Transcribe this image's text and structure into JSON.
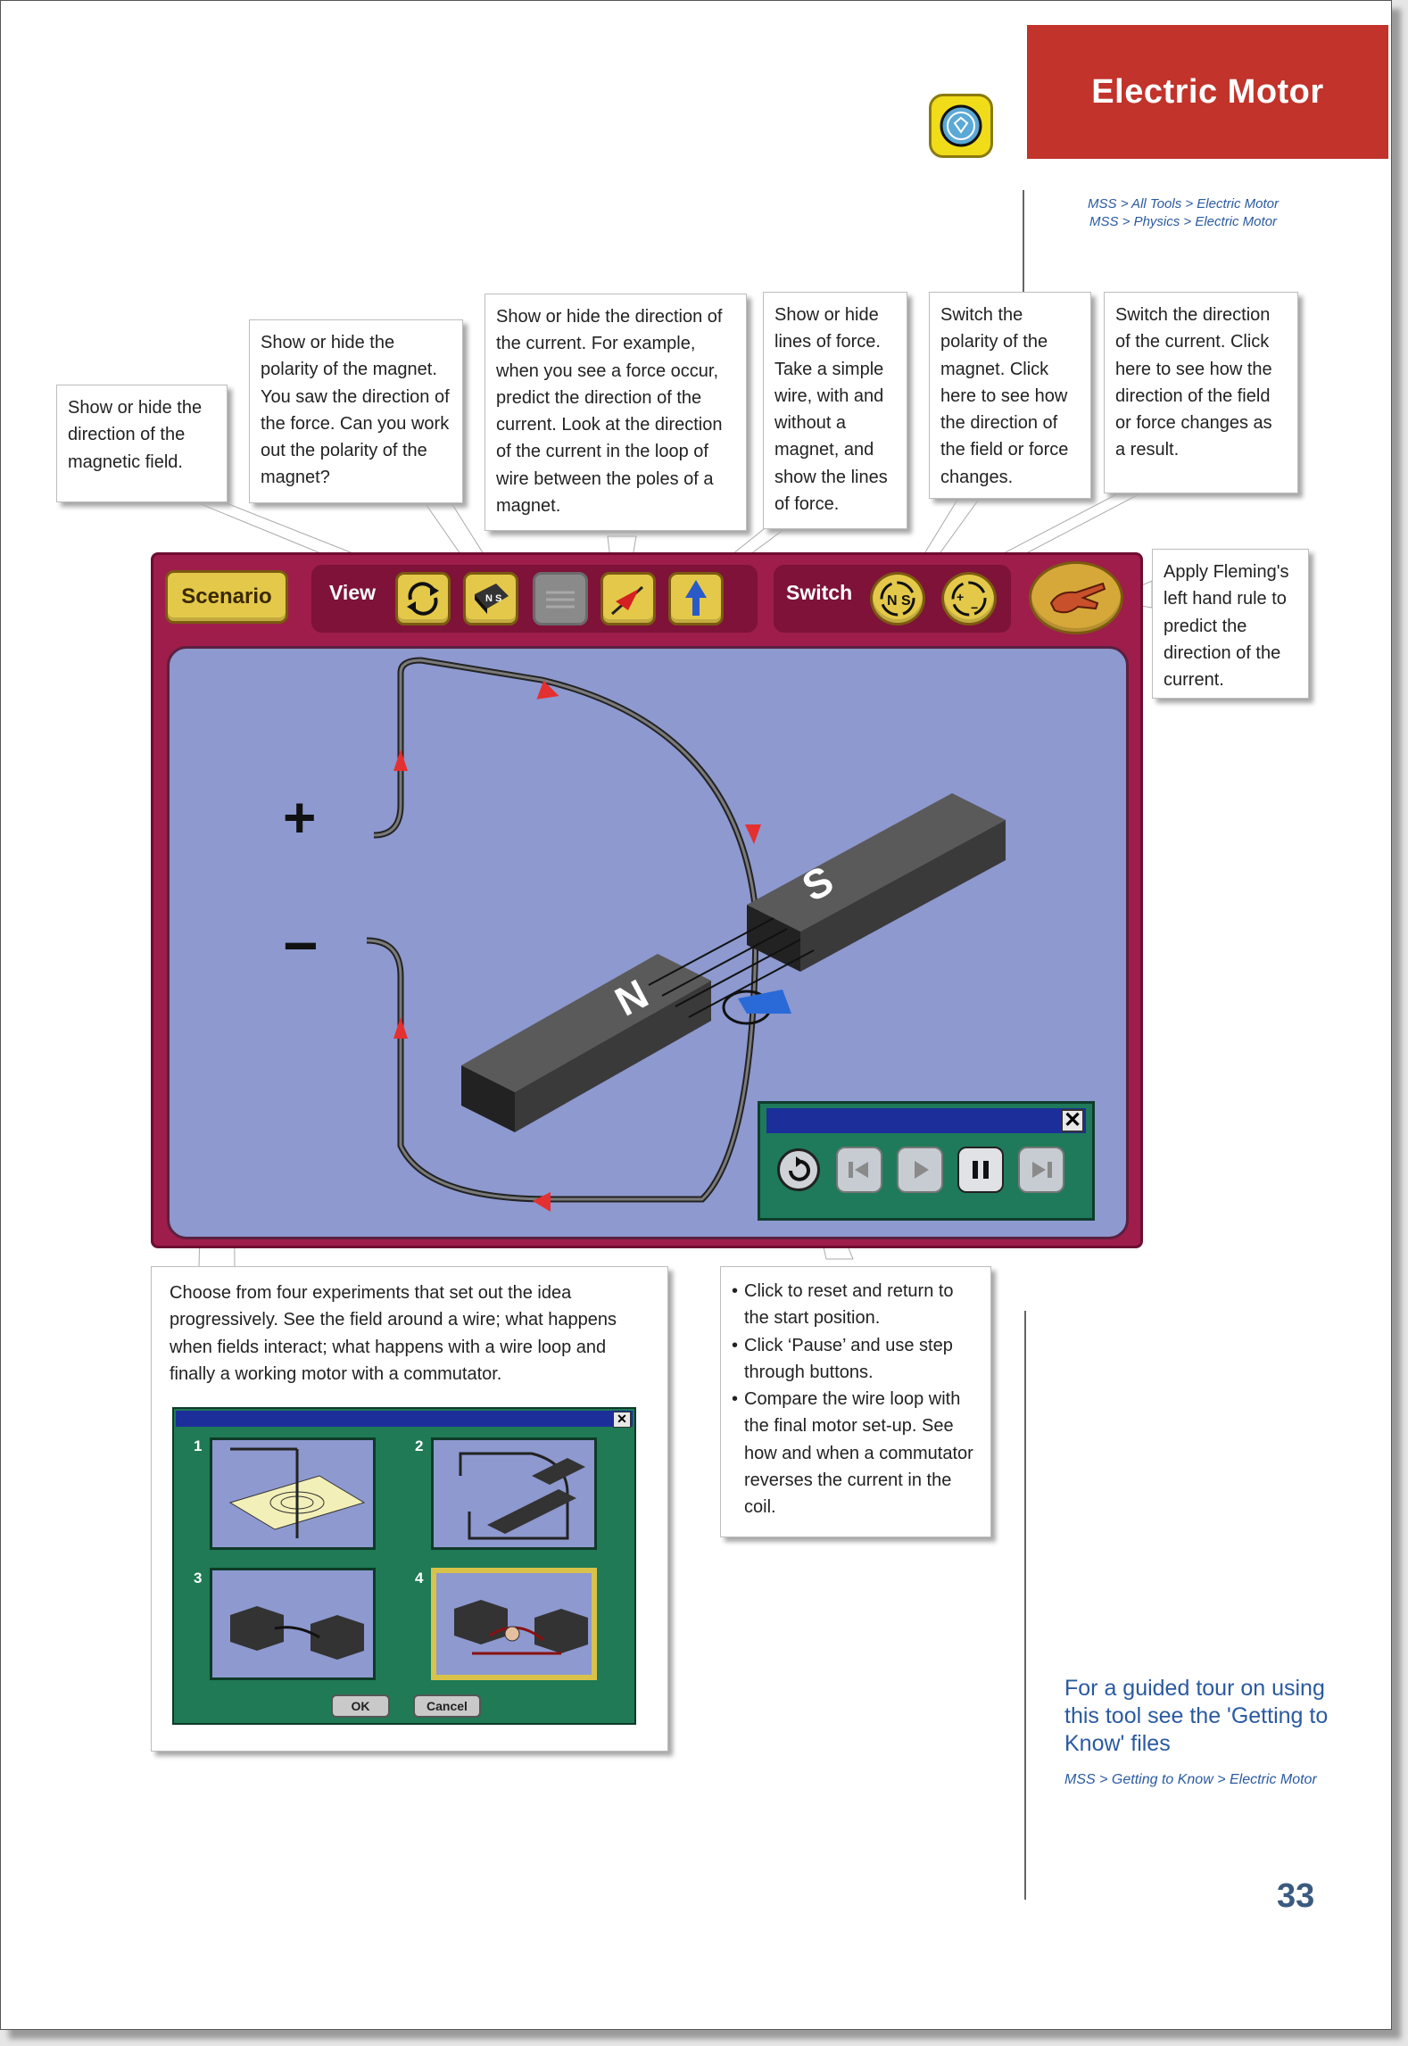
{
  "header": {
    "title": "Electric Motor",
    "breadcrumbs": [
      "MSS > All Tools > Electric Motor",
      "MSS > Physics > Electric Motor"
    ]
  },
  "callouts": {
    "magnetic_field": "Show or hide the direction of the magnetic field.",
    "polarity": "Show or hide the polarity of the magnet. You saw the direction of the force. Can you work out the polarity of the magnet?",
    "current": "Show or hide the direction of the current. For example, when you see a force occur, predict the direction of the current. Look at the direction of the current in the loop of wire between the poles of a magnet.",
    "lines_of_force": "Show or hide lines of force. Take a simple wire, with and without a magnet, and show the lines of force.",
    "switch_polarity": "Switch the polarity of the magnet. Click here to see how the direction of the field or force changes.",
    "switch_current": "Switch the direction of the current. Click here to see how the direction of the field or force changes as a result.",
    "fleming": "Apply Fleming's left hand rule to predict the direction of the current.",
    "scenario": "Choose from four experiments that set out the idea progressively. See the field around a wire; what happens when fields interact; what happens with a wire loop and finally a working motor with a commutator.",
    "controls": [
      "Click to reset and return to the start position.",
      "Click ‘Pause’ and use step through buttons.",
      "Compare the wire loop with the final motor set-up. See how and when a commutator reverses the current in the coil."
    ]
  },
  "toolbar": {
    "scenario_label": "Scenario",
    "view_label": "View",
    "switch_label": "Switch"
  },
  "stage": {
    "plus": "+",
    "minus": "−",
    "magnet_n": "N",
    "magnet_s": "S"
  },
  "controls": {
    "close": "✕"
  },
  "scenario_dialog": {
    "numbers": [
      "1",
      "2",
      "3",
      "4"
    ],
    "ok": "OK",
    "cancel": "Cancel",
    "close": "✕"
  },
  "sidebar": {
    "note": "For a guided tour on using this tool see the 'Getting to Know' files",
    "crumb": "MSS > Getting to Know > Electric Motor"
  },
  "page_number": "33",
  "colors": {
    "accent": "#c1332b",
    "sim_frame": "#9e1d4b",
    "stage": "#8d99cf",
    "link": "#2a5aa0"
  }
}
